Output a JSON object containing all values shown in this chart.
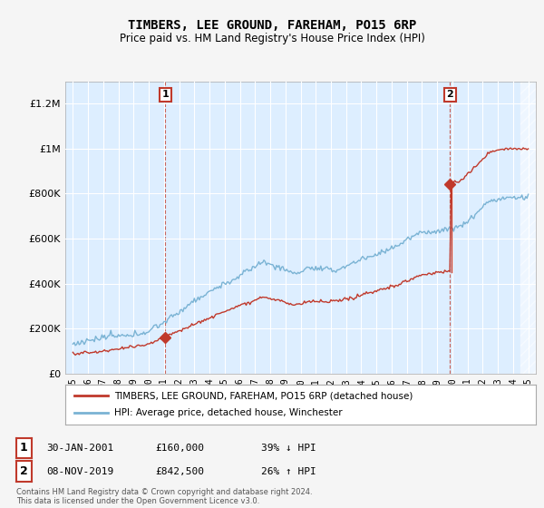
{
  "title": "TIMBERS, LEE GROUND, FAREHAM, PO15 6RP",
  "subtitle": "Price paid vs. HM Land Registry's House Price Index (HPI)",
  "legend_line1": "TIMBERS, LEE GROUND, FAREHAM, PO15 6RP (detached house)",
  "legend_line2": "HPI: Average price, detached house, Winchester",
  "sale1_date": "30-JAN-2001",
  "sale1_price": "£160,000",
  "sale1_hpi": "39% ↓ HPI",
  "sale2_date": "08-NOV-2019",
  "sale2_price": "£842,500",
  "sale2_hpi": "26% ↑ HPI",
  "footer": "Contains HM Land Registry data © Crown copyright and database right 2024.\nThis data is licensed under the Open Government Licence v3.0.",
  "hpi_color": "#7ab3d4",
  "price_color": "#c0392b",
  "dashed_line_color": "#c0392b",
  "plot_bg_color": "#ddeeff",
  "fig_bg_color": "#f5f5f5",
  "ylim": [
    0,
    1300000
  ],
  "yticks": [
    0,
    200000,
    400000,
    600000,
    800000,
    1000000,
    1200000
  ],
  "sale1_year": 2001.08,
  "sale1_price_val": 160000,
  "sale2_year": 2019.84,
  "sale2_price_val": 842500
}
